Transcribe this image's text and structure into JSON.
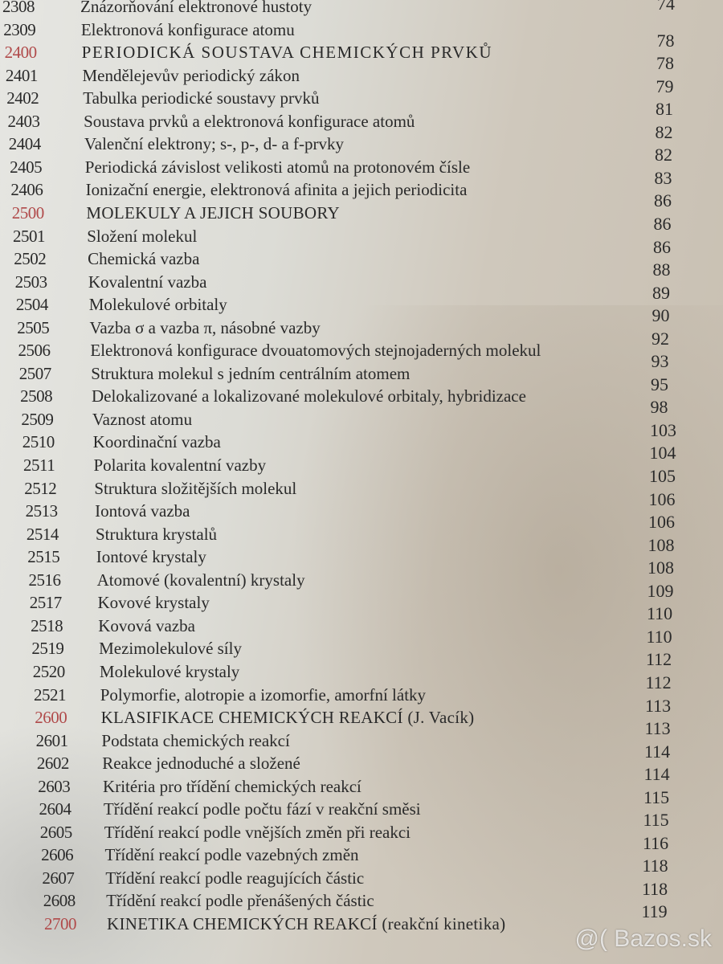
{
  "toc": [
    {
      "num": "2308",
      "title": "Znázorňování elektronové hustoty",
      "page": "74"
    },
    {
      "num": "2309",
      "title": "Elektronová konfigurace atomu",
      "page": "78"
    },
    {
      "num": "2400",
      "title": "PERIODICKÁ SOUSTAVA CHEMICKÝCH PRVKŮ",
      "page": "78",
      "chapter": true
    },
    {
      "num": "2401",
      "title": "Mendělejevův periodický zákon",
      "page": "79"
    },
    {
      "num": "2402",
      "title": "Tabulka periodické soustavy prvků",
      "page": "81"
    },
    {
      "num": "2403",
      "title": "Soustava prvků a elektronová konfigurace atomů",
      "page": "82"
    },
    {
      "num": "2404",
      "title": "Valenční elektrony; s-, p-, d- a f-prvky",
      "page": "82"
    },
    {
      "num": "2405",
      "title": "Periodická závislost velikosti atomů na protonovém čísle",
      "page": "83"
    },
    {
      "num": "2406",
      "title": "Ionizační energie, elektronová afinita a jejich periodicita",
      "page": "86"
    },
    {
      "num": "2500",
      "title": "MOLEKULY A JEJICH SOUBORY",
      "page": "86",
      "chapter": true
    },
    {
      "num": "2501",
      "title": "Složení molekul",
      "page": "86"
    },
    {
      "num": "2502",
      "title": "Chemická vazba",
      "page": "88"
    },
    {
      "num": "2503",
      "title": "Kovalentní vazba",
      "page": "89"
    },
    {
      "num": "2504",
      "title": "Molekulové orbitaly",
      "page": "90"
    },
    {
      "num": "2505",
      "title": "Vazba σ a vazba π, násobné vazby",
      "page": "92"
    },
    {
      "num": "2506",
      "title": "Elektronová konfigurace dvouatomových stejnojaderných molekul",
      "page": "93"
    },
    {
      "num": "2507",
      "title": "Struktura molekul s jedním centrálním atomem",
      "page": "95"
    },
    {
      "num": "2508",
      "title": "Delokalizované a lokalizované molekulové orbitaly, hybridizace",
      "page": "98"
    },
    {
      "num": "2509",
      "title": "Vaznost atomu",
      "page": "103"
    },
    {
      "num": "2510",
      "title": "Koordinační vazba",
      "page": "104"
    },
    {
      "num": "2511",
      "title": "Polarita kovalentní vazby",
      "page": "105"
    },
    {
      "num": "2512",
      "title": "Struktura složitějších molekul",
      "page": "106"
    },
    {
      "num": "2513",
      "title": "Iontová vazba",
      "page": "106"
    },
    {
      "num": "2514",
      "title": "Struktura krystalů",
      "page": "108"
    },
    {
      "num": "2515",
      "title": "Iontové krystaly",
      "page": "108"
    },
    {
      "num": "2516",
      "title": "Atomové (kovalentní) krystaly",
      "page": "109"
    },
    {
      "num": "2517",
      "title": "Kovové krystaly",
      "page": "110"
    },
    {
      "num": "2518",
      "title": "Kovová vazba",
      "page": "110"
    },
    {
      "num": "2519",
      "title": "Mezimolekulové síly",
      "page": "112"
    },
    {
      "num": "2520",
      "title": "Molekulové krystaly",
      "page": "112"
    },
    {
      "num": "2521",
      "title": "Polymorfie, alotropie a izomorfie, amorfní látky",
      "page": "113"
    },
    {
      "num": "2600",
      "title": "KLASIFIKACE CHEMICKÝCH REAKCÍ (J. Vacík)",
      "page": "113",
      "chapter": true
    },
    {
      "num": "2601",
      "title": "Podstata chemických reakcí",
      "page": "114"
    },
    {
      "num": "2602",
      "title": "Reakce jednoduché a složené",
      "page": "114"
    },
    {
      "num": "2603",
      "title": "Kritéria pro třídění chemických reakcí",
      "page": "115"
    },
    {
      "num": "2604",
      "title": "Třídění reakcí podle počtu fází v reakční směsi",
      "page": "115"
    },
    {
      "num": "2605",
      "title": "Třídění reakcí podle vnějších změn při reakci",
      "page": "116"
    },
    {
      "num": "2606",
      "title": "Třídění reakcí podle vazebných změn",
      "page": "118"
    },
    {
      "num": "2607",
      "title": "Třídění reakcí podle reagujících částic",
      "page": "118"
    },
    {
      "num": "2608",
      "title": "Třídění reakcí podle přenášených částic",
      "page": "119"
    },
    {
      "num": "2700",
      "title": "KINETIKA CHEMICKÝCH REAKCÍ (reakční kinetika)",
      "page": "",
      "chapter": true
    }
  ],
  "watermark": "@( Bazos.sk"
}
